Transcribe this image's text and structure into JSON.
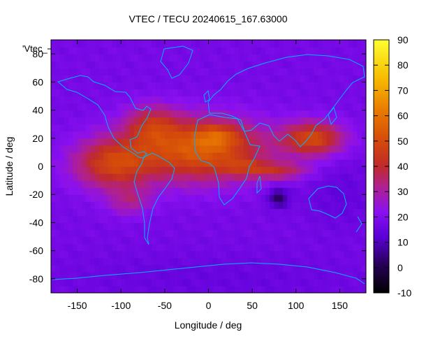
{
  "chart_data": {
    "type": "heatmap",
    "title": "VTEC / TECU 20240615_167.63000",
    "xlabel": "Longitude / deg",
    "ylabel": "Latitude / deg",
    "series_label": "'Vtec_",
    "xlim": [
      -180,
      180
    ],
    "ylim": [
      -90,
      90
    ],
    "xticks": [
      -150,
      -100,
      -50,
      0,
      50,
      100,
      150
    ],
    "yticks": [
      -80,
      -60,
      -40,
      -20,
      0,
      20,
      40,
      60,
      80
    ],
    "colorbar": {
      "min": -10,
      "max": 90,
      "ticks": [
        -10,
        0,
        10,
        20,
        30,
        40,
        50,
        60,
        70,
        80,
        90
      ]
    },
    "grid": false,
    "cell_size_deg": 5,
    "background_level": 18,
    "blobs": [
      {
        "lon": -10,
        "lat": 12,
        "slon": 75,
        "slat": 22,
        "amp": 36
      },
      {
        "lon": -110,
        "lat": 2,
        "slon": 45,
        "slat": 18,
        "amp": 27
      },
      {
        "lon": -65,
        "lat": 30,
        "slon": 30,
        "slat": 14,
        "amp": 18
      },
      {
        "lon": 10,
        "lat": 22,
        "slon": 25,
        "slat": 8,
        "amp": 14
      },
      {
        "lon": 40,
        "lat": 0,
        "slon": 25,
        "slat": 6,
        "amp": 10
      },
      {
        "lon": 120,
        "lat": 20,
        "slon": 35,
        "slat": 12,
        "amp": 30
      },
      {
        "lon": 80,
        "lat": -3,
        "slon": 35,
        "slat": 6,
        "amp": 17
      },
      {
        "lon": -90,
        "lat": -25,
        "slon": 25,
        "slat": 10,
        "amp": 12
      },
      {
        "lon": 80,
        "lat": -22,
        "slon": 12,
        "slat": 7,
        "amp": -16
      },
      {
        "lon": 150,
        "lat": -20,
        "slon": 40,
        "slat": 25,
        "amp": -4
      },
      {
        "lon": 0,
        "lat": -80,
        "slon": 200,
        "slat": 20,
        "amp": -3
      }
    ]
  }
}
